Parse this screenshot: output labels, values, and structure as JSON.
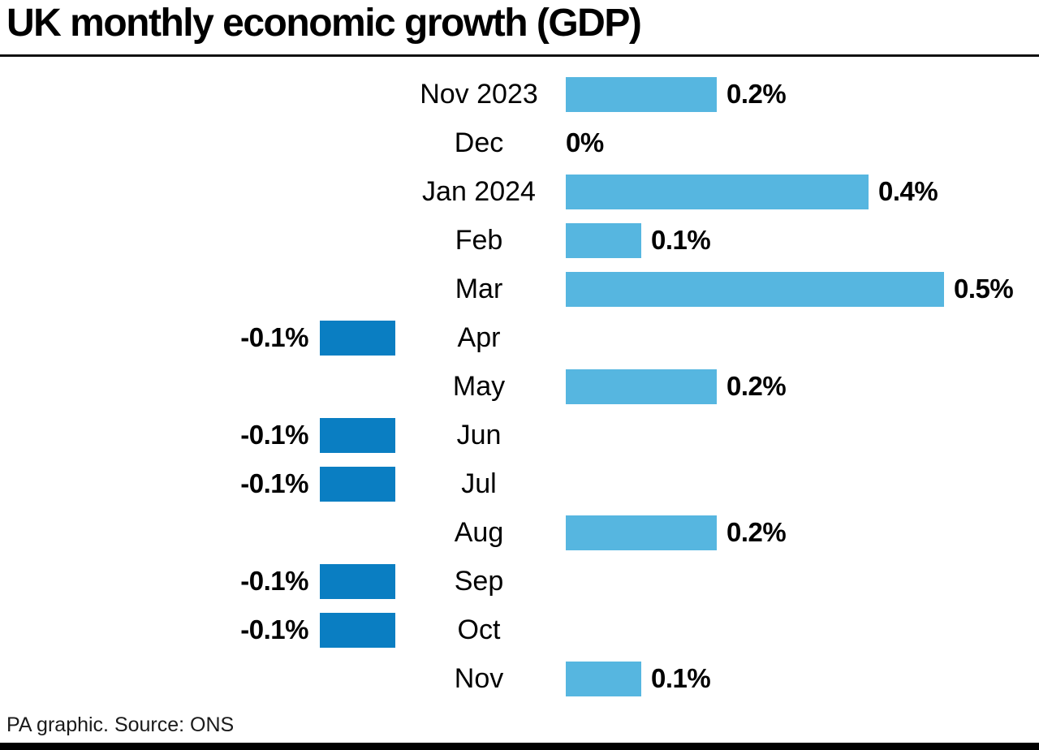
{
  "header": {
    "title": "UK monthly economic growth (GDP)"
  },
  "footer": {
    "source": "PA graphic. Source: ONS"
  },
  "colors": {
    "positive_bar": "#56b6e0",
    "negative_bar": "#0a7ec2",
    "text": "#000000",
    "title_rule": "#111111",
    "bottom_bar": "#000000",
    "background": "#ffffff"
  },
  "chart_data": {
    "type": "bar",
    "orientation": "horizontal",
    "title": "UK monthly economic growth (GDP)",
    "xlabel": "",
    "ylabel": "",
    "unit": "%",
    "categories": [
      "Nov 2023",
      "Dec",
      "Jan 2024",
      "Feb",
      "Mar",
      "Apr",
      "May",
      "Jun",
      "Jul",
      "Aug",
      "Sep",
      "Oct",
      "Nov"
    ],
    "values": [
      0.2,
      0,
      0.4,
      0.1,
      0.5,
      -0.1,
      0.2,
      -0.1,
      -0.1,
      0.2,
      -0.1,
      -0.1,
      0.1
    ],
    "value_labels": [
      "0.2%",
      "0%",
      "0.4%",
      "0.1%",
      "0.5%",
      "-0.1%",
      "0.2%",
      "-0.1%",
      "-0.1%",
      "0.2%",
      "-0.1%",
      "-0.1%",
      "0.1%"
    ],
    "xlim": [
      -0.1,
      0.5
    ],
    "grid": false,
    "legend": false,
    "value_labels_on_bars": true,
    "source": "PA graphic. Source: ONS"
  }
}
